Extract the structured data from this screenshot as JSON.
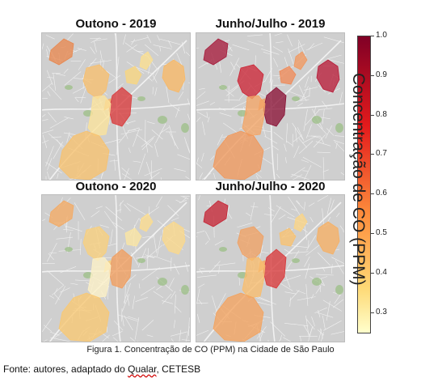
{
  "panels": [
    {
      "title": "Outono - 2019",
      "colors": {
        "nw": "#e8884f",
        "w": "#f7bf6e",
        "c": "#f9d67f",
        "nc": "#fbdf90",
        "e": "#f8b966",
        "ctr": "#d93a3b",
        "sw": "#fbe39b",
        "s": "#f7c16e",
        "inner": "#f6b66a"
      }
    },
    {
      "title": "Junho/Julho - 2019",
      "colors": {
        "nw": "#a61c3c",
        "w": "#cc2637",
        "c": "#ef8a58",
        "nc": "#f19960",
        "e": "#b81d3a",
        "ctr": "#8a1236",
        "sw": "#f3a566",
        "s": "#f0985c",
        "inner": "#f29f60"
      }
    },
    {
      "title": "Outono - 2020",
      "colors": {
        "nw": "#f3aa64",
        "w": "#f9cf7c",
        "c": "#fbe6a1",
        "nc": "#fcdd8e",
        "e": "#fbd88a",
        "ctr": "#f19d5e",
        "sw": "#fdf1c6",
        "s": "#f9c872",
        "inner": "#f9d27e"
      }
    },
    {
      "title": "Junho/Julho - 2020",
      "colors": {
        "nw": "#c52636",
        "w": "#f0a164",
        "c": "#f8c16f",
        "nc": "#fbd585",
        "e": "#f6b064",
        "ctr": "#d93a3b",
        "sw": "#f8bd6d",
        "s": "#f3a35f",
        "inner": "#f5ac62"
      }
    }
  ],
  "colorbar": {
    "label": "Concentração de CO (PPM)",
    "ticks": [
      "1.0",
      "0.9",
      "0.8",
      "0.7",
      "0.6",
      "0.5",
      "0.4",
      "0.3"
    ],
    "min_color": "#ffffcc",
    "mid_color": "#fd8d3c",
    "max_color": "#800026"
  },
  "caption": "Figura 1. Concentração de CO (PPM) na Cidade de São Paulo",
  "source": {
    "prefix": "Fonte: autores, adaptado do ",
    "qualar": "Qualar",
    "suffix": ", CETESB"
  }
}
